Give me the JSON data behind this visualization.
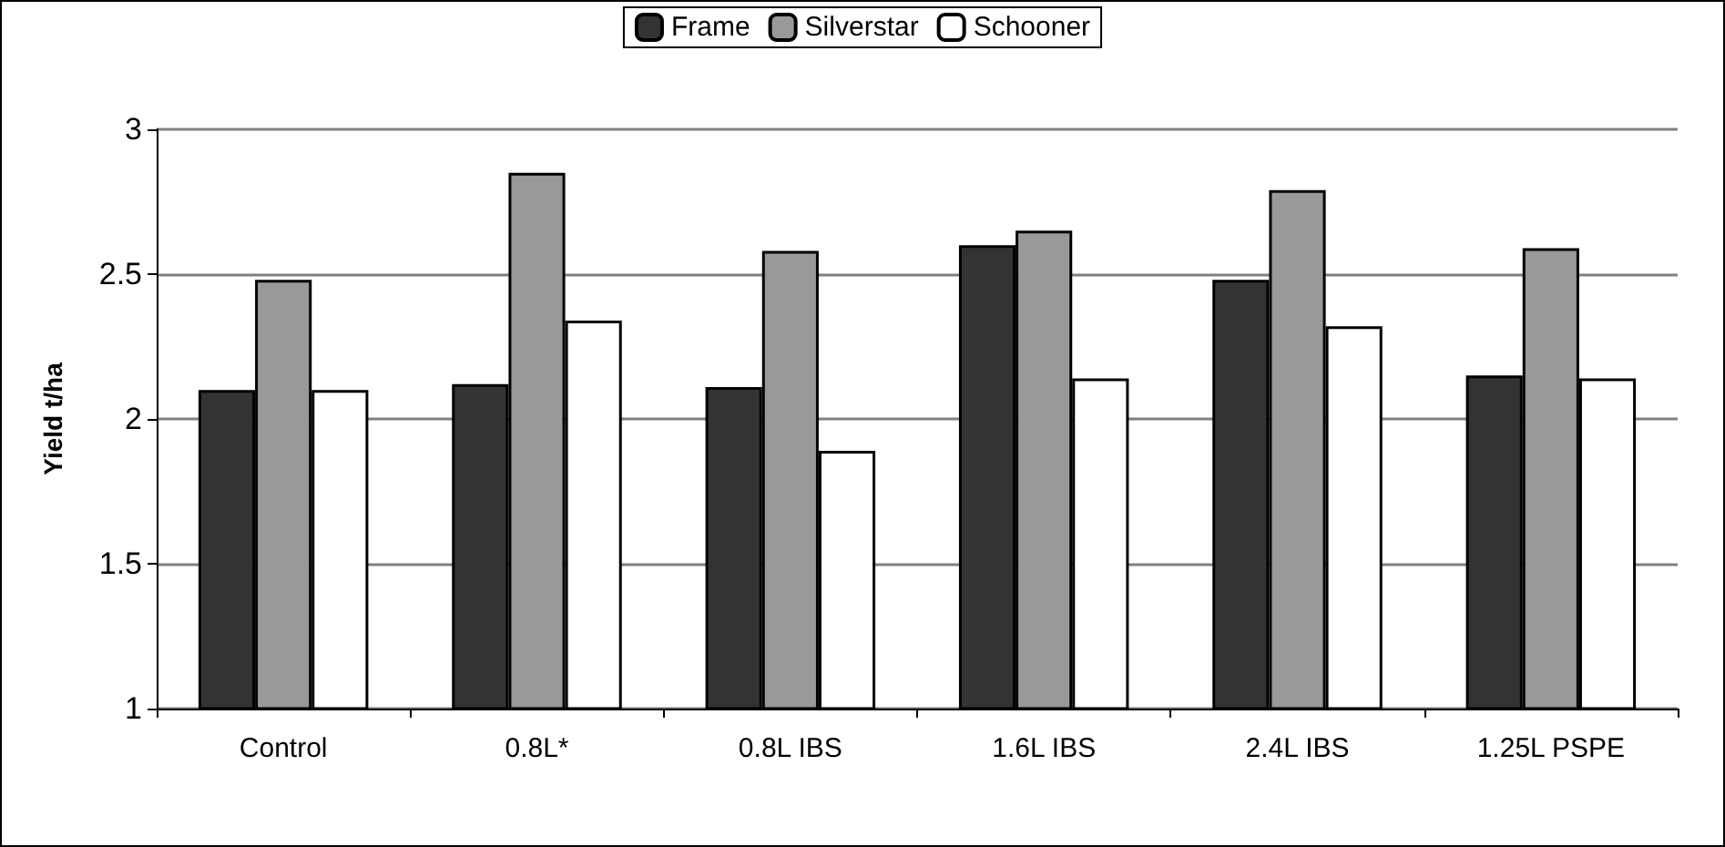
{
  "chart_data": {
    "type": "bar",
    "ylabel": "Yield t/ha",
    "categories": [
      "Control",
      "0.8L*",
      "0.8L IBS",
      "1.6L IBS",
      "2.4L IBS",
      "1.25L PSPE"
    ],
    "series": [
      {
        "name": "Frame",
        "color": "#333333",
        "values": [
          2.1,
          2.12,
          2.11,
          2.6,
          2.48,
          2.15
        ]
      },
      {
        "name": "Silverstar",
        "color": "#999999",
        "values": [
          2.48,
          2.85,
          2.58,
          2.65,
          2.79,
          2.59
        ]
      },
      {
        "name": "Schooner",
        "color": "#ffffff",
        "values": [
          2.1,
          2.34,
          1.89,
          2.14,
          2.32,
          2.14
        ]
      }
    ],
    "ylim": [
      1,
      3
    ],
    "yticks": [
      1,
      1.5,
      2,
      2.5,
      3
    ],
    "grid": "y",
    "legend": "top"
  }
}
